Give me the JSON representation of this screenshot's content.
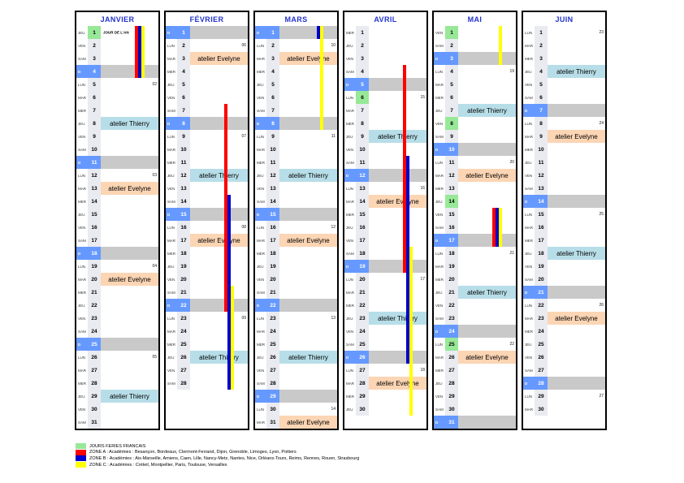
{
  "colors": {
    "title_blue": "#2233CC",
    "sunday_blue": "#6699FF",
    "sunday_gray": "#C9C9C9",
    "daynum_bg": "#E9EBF0",
    "holiday_green": "#97E897",
    "zone_a": "#FF0000",
    "zone_b": "#0000CC",
    "zone_c": "#FFFF00"
  },
  "weekday_labels": [
    "LUN",
    "MAR",
    "MER",
    "JEU",
    "VEN",
    "SAM",
    "D"
  ],
  "event_types": {
    "thierry": {
      "label": "atelier Thierry",
      "color": "#B7DEE8"
    },
    "evelyne": {
      "label": "atelier Evelyne",
      "color": "#FCD5B4"
    }
  },
  "months": [
    {
      "title": "JANVIER",
      "days": 31,
      "first_weekday": 3,
      "week_numbers": {
        "5": "02",
        "12": "03",
        "19": "04",
        "26": "05"
      },
      "holidays": [
        {
          "day": 1,
          "label": "JOUR DE L'AN"
        }
      ],
      "events": [
        {
          "day": 8,
          "type": "thierry"
        },
        {
          "day": 13,
          "type": "evelyne"
        },
        {
          "day": 20,
          "type": "evelyne"
        },
        {
          "day": 29,
          "type": "thierry"
        }
      ],
      "bars": [
        {
          "zone": "A",
          "from": 1,
          "to": 4
        },
        {
          "zone": "B",
          "from": 1,
          "to": 4
        },
        {
          "zone": "C",
          "from": 1,
          "to": 4
        }
      ]
    },
    {
      "title": "FÉVRIER",
      "days": 28,
      "first_weekday": 6,
      "week_numbers": {
        "2": "06",
        "9": "07",
        "16": "08",
        "23": "09"
      },
      "holidays": [],
      "events": [
        {
          "day": 3,
          "type": "evelyne"
        },
        {
          "day": 12,
          "type": "thierry"
        },
        {
          "day": 17,
          "type": "evelyne"
        },
        {
          "day": 26,
          "type": "thierry"
        }
      ],
      "bars": [
        {
          "zone": "A",
          "from": 7,
          "to": 22
        },
        {
          "zone": "B",
          "from": 14,
          "to": 28
        },
        {
          "zone": "C",
          "from": 21,
          "to": 28
        }
      ]
    },
    {
      "title": "MARS",
      "days": 31,
      "first_weekday": 6,
      "week_numbers": {
        "2": "10",
        "9": "11",
        "16": "12",
        "23": "13",
        "30": "14"
      },
      "holidays": [],
      "events": [
        {
          "day": 3,
          "type": "evelyne"
        },
        {
          "day": 12,
          "type": "thierry"
        },
        {
          "day": 17,
          "type": "evelyne"
        },
        {
          "day": 26,
          "type": "thierry"
        },
        {
          "day": 31,
          "type": "evelyne"
        }
      ],
      "bars": [
        {
          "zone": "B",
          "from": 1,
          "to": 1
        },
        {
          "zone": "C",
          "from": 1,
          "to": 8
        }
      ]
    },
    {
      "title": "AVRIL",
      "days": 30,
      "first_weekday": 2,
      "week_numbers": {
        "6": "15",
        "13": "16",
        "20": "17",
        "27": "18"
      },
      "holidays": [
        {
          "day": 6,
          "label": ""
        }
      ],
      "events": [
        {
          "day": 9,
          "type": "thierry"
        },
        {
          "day": 14,
          "type": "evelyne"
        },
        {
          "day": 23,
          "type": "thierry"
        },
        {
          "day": 28,
          "type": "evelyne"
        }
      ],
      "bars": [
        {
          "zone": "A",
          "from": 4,
          "to": 19
        },
        {
          "zone": "B",
          "from": 11,
          "to": 26
        },
        {
          "zone": "C",
          "from": 18,
          "to": 30
        }
      ]
    },
    {
      "title": "MAI",
      "days": 31,
      "first_weekday": 4,
      "week_numbers": {
        "4": "19",
        "11": "20",
        "18": "21",
        "25": "22"
      },
      "holidays": [
        {
          "day": 1,
          "label": ""
        },
        {
          "day": 8,
          "label": ""
        },
        {
          "day": 14,
          "label": ""
        },
        {
          "day": 25,
          "label": ""
        }
      ],
      "events": [
        {
          "day": 7,
          "type": "thierry"
        },
        {
          "day": 12,
          "type": "evelyne"
        },
        {
          "day": 21,
          "type": "thierry"
        },
        {
          "day": 26,
          "type": "evelyne"
        }
      ],
      "bars": [
        {
          "zone": "C",
          "from": 1,
          "to": 3
        },
        {
          "zone": "A",
          "from": 15,
          "to": 17
        },
        {
          "zone": "B",
          "from": 15,
          "to": 17
        },
        {
          "zone": "C",
          "from": 15,
          "to": 17
        }
      ]
    },
    {
      "title": "JUIN",
      "days": 30,
      "first_weekday": 0,
      "week_numbers": {
        "1": "23",
        "8": "24",
        "15": "25",
        "22": "26",
        "29": "27"
      },
      "holidays": [],
      "events": [
        {
          "day": 4,
          "type": "thierry"
        },
        {
          "day": 9,
          "type": "evelyne"
        },
        {
          "day": 18,
          "type": "thierry"
        },
        {
          "day": 23,
          "type": "evelyne"
        }
      ],
      "bars": []
    }
  ],
  "legend": {
    "items": [
      {
        "swatch": "#97E897",
        "zone": "",
        "text": "JOURS FERIES FRANCAIS"
      },
      {
        "swatch": "#FF0000",
        "zone": "A",
        "text": "ZONE A : Académies : Besançon, Bordeaux, Clermont-Ferrand, Dijon, Grenoble, Limoges, Lyon, Poitiers"
      },
      {
        "swatch": "#0000CC",
        "zone": "B",
        "text": "ZONE B : Académies : Aix-Marseille, Amiens, Caen, Lille, Nancy-Metz, Nantes, Nice, Orléans-Tours, Reims, Rennes, Rouen, Strasbourg"
      },
      {
        "swatch": "#FFFF00",
        "zone": "C",
        "text": "ZONE C : Académies : Créteil, Montpellier, Paris, Toulouse, Versailles"
      }
    ]
  }
}
